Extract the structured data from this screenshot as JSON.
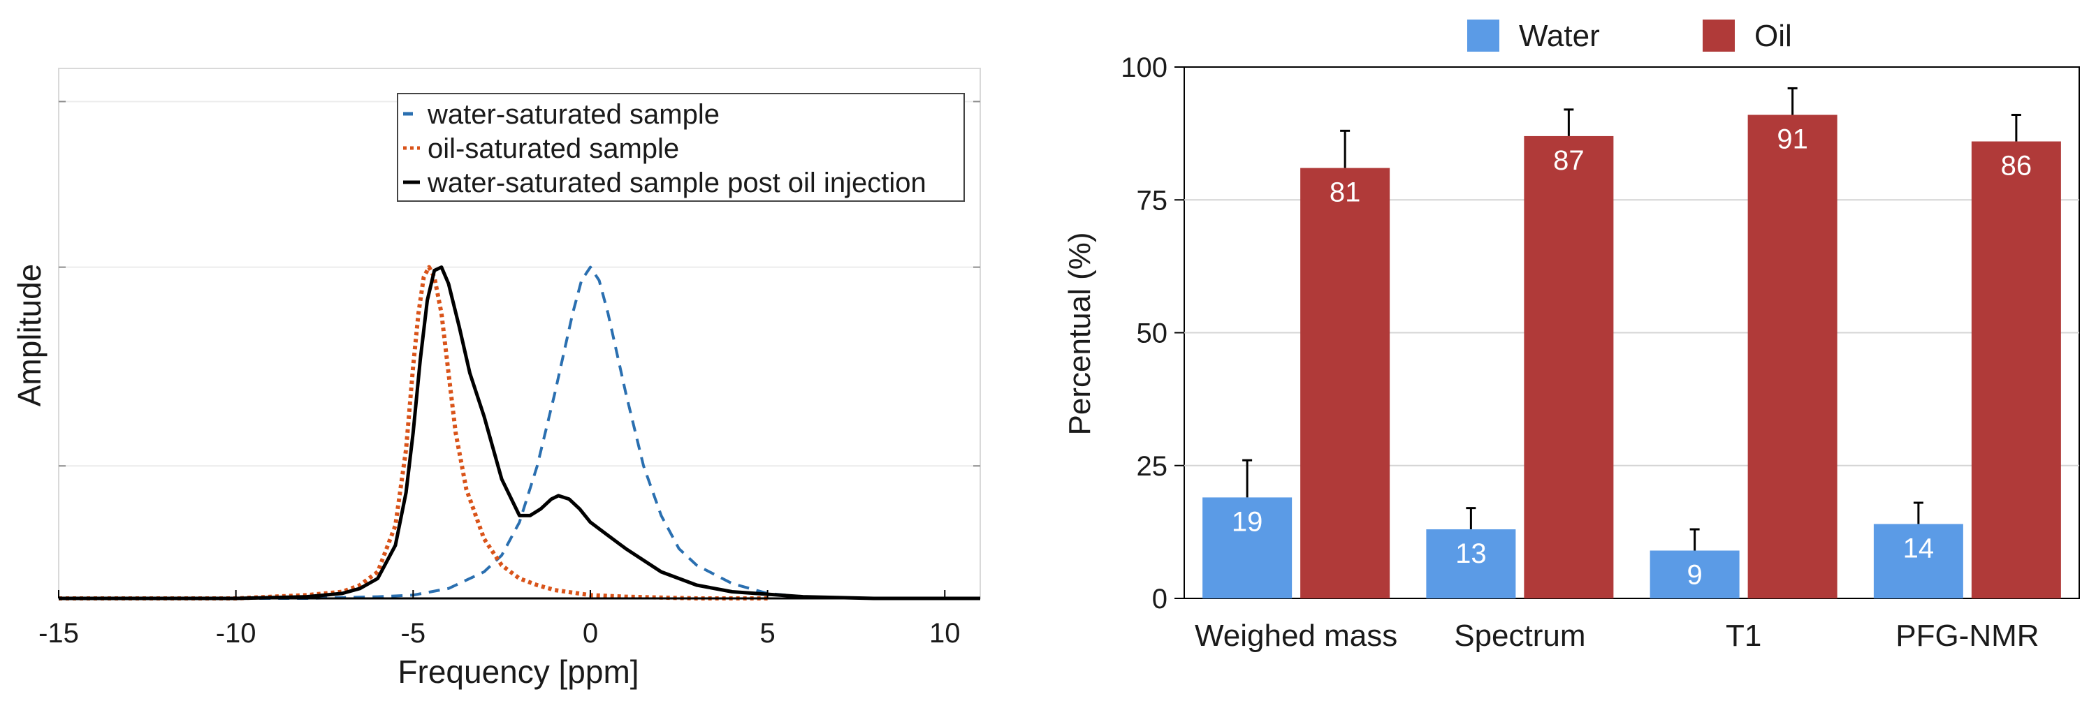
{
  "chart_data": [
    {
      "type": "line",
      "title": "",
      "xlabel": "Frequency [ppm]",
      "ylabel": "Amplitude",
      "xlim": [
        -15,
        11
      ],
      "ylim": [
        0,
        1.6
      ],
      "xticks": [
        -15,
        -10,
        -5,
        0,
        5,
        10
      ],
      "xtick_labels": [
        "-15",
        "-10",
        "-5",
        "0",
        "5",
        "10"
      ],
      "legend": {
        "position": "top-right"
      },
      "series": [
        {
          "name": "water-saturated sample",
          "style": "dashed",
          "color": "#2a6fb0",
          "x": [
            -12,
            -10,
            -8,
            -6,
            -5,
            -4,
            -3,
            -2.5,
            -2,
            -1.5,
            -1,
            -0.5,
            -0.25,
            0,
            0.25,
            0.5,
            1,
            1.5,
            2,
            2.5,
            3,
            4,
            5,
            6,
            8,
            11
          ],
          "y": [
            0.0,
            0.0,
            0.0,
            0.005,
            0.01,
            0.03,
            0.08,
            0.13,
            0.23,
            0.4,
            0.62,
            0.86,
            0.96,
            1.0,
            0.96,
            0.86,
            0.62,
            0.4,
            0.25,
            0.15,
            0.1,
            0.045,
            0.015,
            0.005,
            0.0,
            0.0
          ]
        },
        {
          "name": "oil-saturated sample",
          "style": "dotted",
          "color": "#d95319",
          "x": [
            -15,
            -10,
            -8,
            -7,
            -6.5,
            -6,
            -5.5,
            -5.2,
            -5,
            -4.85,
            -4.7,
            -4.55,
            -4.4,
            -4.2,
            -4,
            -3.8,
            -3.5,
            -3,
            -2.5,
            -2,
            -1.5,
            -1,
            0,
            1,
            3,
            5
          ],
          "y": [
            0.0,
            0.0,
            0.01,
            0.02,
            0.04,
            0.08,
            0.22,
            0.45,
            0.7,
            0.86,
            0.97,
            1.0,
            0.97,
            0.86,
            0.68,
            0.5,
            0.33,
            0.18,
            0.1,
            0.06,
            0.04,
            0.025,
            0.01,
            0.005,
            0.0,
            0.0
          ]
        },
        {
          "name": "water-saturated sample post oil injection",
          "style": "solid",
          "color": "#000000",
          "x": [
            -15,
            -10,
            -8,
            -7,
            -6.5,
            -6,
            -5.5,
            -5.2,
            -5,
            -4.8,
            -4.6,
            -4.4,
            -4.2,
            -4,
            -3.7,
            -3.4,
            -3,
            -2.5,
            -2,
            -1.7,
            -1.4,
            -1.1,
            -0.9,
            -0.6,
            -0.3,
            0,
            0.5,
            1,
            2,
            3,
            4,
            6,
            8,
            11
          ],
          "y": [
            0.0,
            0.0,
            0.005,
            0.015,
            0.03,
            0.06,
            0.16,
            0.32,
            0.5,
            0.72,
            0.9,
            0.99,
            1.0,
            0.95,
            0.82,
            0.68,
            0.55,
            0.36,
            0.25,
            0.25,
            0.27,
            0.3,
            0.31,
            0.3,
            0.27,
            0.23,
            0.19,
            0.15,
            0.08,
            0.04,
            0.02,
            0.005,
            0.0,
            0.0
          ]
        }
      ]
    },
    {
      "type": "bar",
      "title": "",
      "xlabel": "",
      "ylabel": "Percentual (%)",
      "ylim": [
        0,
        100
      ],
      "yticks": [
        0,
        25,
        50,
        75,
        100
      ],
      "ytick_labels": [
        "0",
        "25",
        "50",
        "75",
        "100"
      ],
      "grid": true,
      "legend": {
        "position": "top-center"
      },
      "categories": [
        "Weighed mass",
        "Spectrum",
        "T1",
        "PFG-NMR"
      ],
      "series": [
        {
          "name": "Water",
          "color": "#5b9be6",
          "values": [
            19,
            13,
            9,
            14
          ],
          "value_labels": [
            "19",
            "13",
            "9",
            "14"
          ],
          "error_upper": [
            7,
            4,
            4,
            4
          ]
        },
        {
          "name": "Oil",
          "color": "#b03a39",
          "values": [
            81,
            87,
            91,
            86
          ],
          "value_labels": [
            "81",
            "87",
            "91",
            "86"
          ],
          "error_upper": [
            7,
            5,
            5,
            5
          ]
        }
      ]
    }
  ]
}
